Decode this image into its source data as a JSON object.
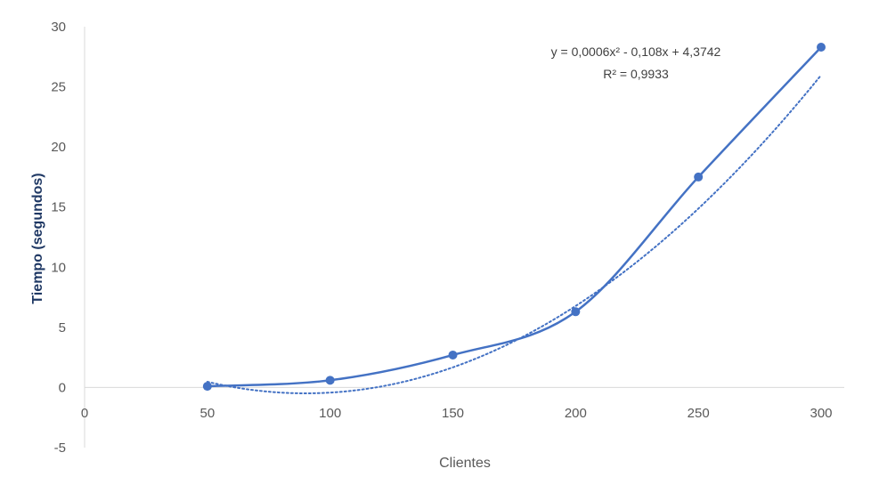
{
  "chart_data": {
    "type": "scatter",
    "xlabel": "Clientes",
    "ylabel": "Tiempo (segundos)",
    "xlim": [
      0,
      300
    ],
    "ylim": [
      -5,
      30
    ],
    "x_ticks": [
      0,
      50,
      100,
      150,
      200,
      250,
      300
    ],
    "y_ticks": [
      -5,
      0,
      5,
      10,
      15,
      20,
      25,
      30
    ],
    "grid": false,
    "legend": "none",
    "series": [
      {
        "points": [
          {
            "x": 50,
            "y": 0.1
          },
          {
            "x": 100,
            "y": 0.6
          },
          {
            "x": 150,
            "y": 2.7
          },
          {
            "x": 200,
            "y": 6.3
          },
          {
            "x": 250,
            "y": 17.5
          },
          {
            "x": 300,
            "y": 28.3
          }
        ],
        "style": "smoothed line with markers",
        "color": "#4472c4"
      }
    ],
    "trendline": {
      "type": "polynomial order 2",
      "coefficients": [
        0.0006,
        -0.108,
        4.3742
      ],
      "style": "dotted",
      "color": "#4472c4",
      "equation_label": "y = 0,0006x² - 0,108x + 4,3742",
      "r2_label": "R² = 0,9933"
    }
  }
}
